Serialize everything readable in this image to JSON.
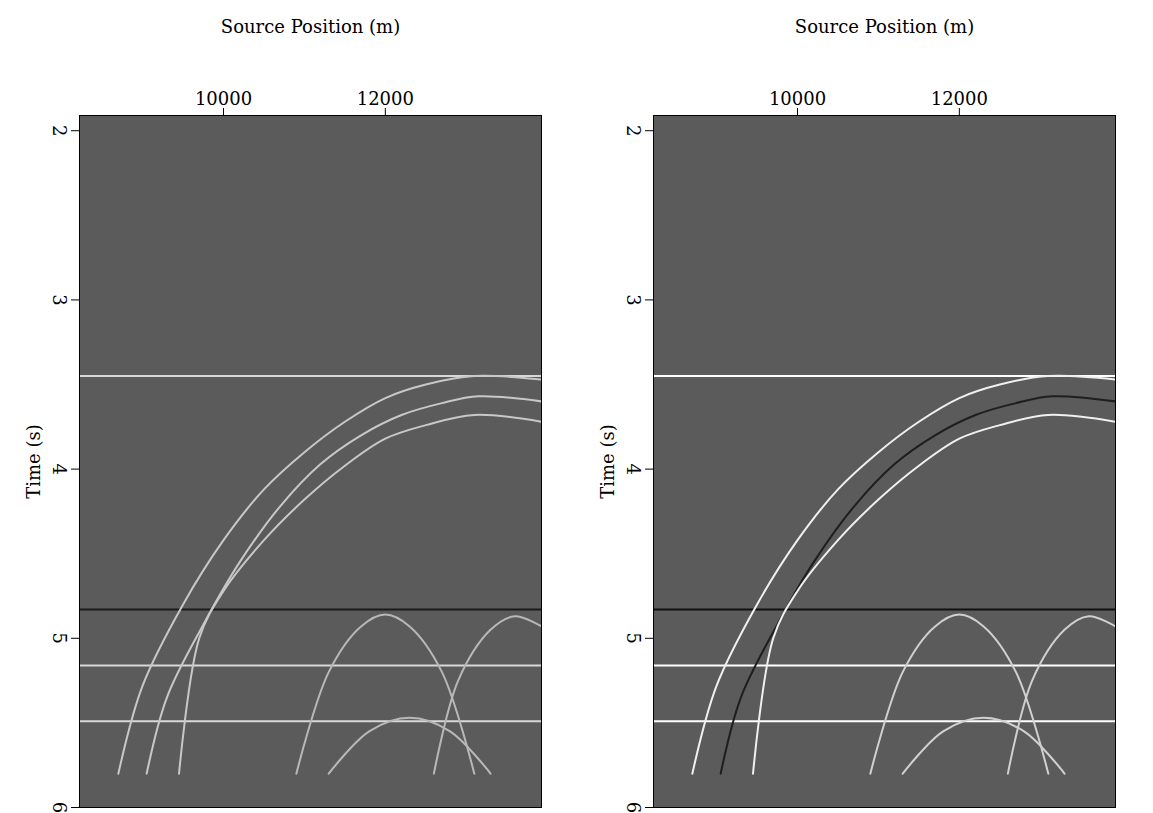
{
  "chart_data": [
    {
      "type": "line",
      "x_label": "Source Position (m)",
      "y_label": "Time (s)",
      "xlim": [
        8220,
        13930
      ],
      "xticks": [
        10000,
        12000
      ],
      "ylim": [
        1.91,
        6
      ],
      "yticks": [
        2,
        3,
        4,
        5,
        6
      ],
      "grid": false,
      "series": [
        {
          "color": "#d8d8d8",
          "x": [
            8220,
            13930
          ],
          "values": [
            3.45,
            3.45
          ]
        },
        {
          "color": "#1a1a1a",
          "x": [
            8220,
            13930
          ],
          "values": [
            4.83,
            4.83
          ]
        },
        {
          "color": "#d8d8d8",
          "x": [
            8220,
            13930
          ],
          "values": [
            5.16,
            5.16
          ]
        },
        {
          "color": "#d8d8d8",
          "x": [
            8220,
            13930
          ],
          "values": [
            5.49,
            5.49
          ]
        },
        {
          "color": "#c8c8c8",
          "x": [
            8700,
            9000,
            9500,
            10000,
            10500,
            11000,
            11500,
            12000,
            12500,
            13100,
            13930
          ],
          "values": [
            5.8,
            5.28,
            4.8,
            4.42,
            4.12,
            3.9,
            3.72,
            3.58,
            3.5,
            3.45,
            3.47
          ]
        },
        {
          "color": "#c8c8c8",
          "x": [
            9050,
            9300,
            9750,
            10200,
            10700,
            11200,
            11700,
            12200,
            12700,
            13150,
            13930
          ],
          "values": [
            5.8,
            5.35,
            4.92,
            4.55,
            4.22,
            3.97,
            3.8,
            3.68,
            3.61,
            3.57,
            3.6
          ]
        },
        {
          "color": "#c8c8c8",
          "x": [
            9450,
            9700,
            10000,
            10500,
            11000,
            11500,
            12000,
            12500,
            13100,
            13930
          ],
          "values": [
            5.8,
            5.0,
            4.72,
            4.42,
            4.18,
            3.98,
            3.82,
            3.74,
            3.68,
            3.72
          ]
        },
        {
          "color": "#b8b8b8",
          "x": [
            10900,
            11300,
            11700,
            12000,
            12300,
            12700,
            13100
          ],
          "values": [
            5.8,
            5.2,
            4.93,
            4.86,
            4.93,
            5.2,
            5.8
          ]
        },
        {
          "color": "#b8b8b8",
          "x": [
            12600,
            12900,
            13300,
            13600,
            13930
          ],
          "values": [
            5.8,
            5.25,
            4.95,
            4.87,
            4.93
          ]
        },
        {
          "color": "#b8b8b8",
          "x": [
            11300,
            11800,
            12300,
            12800,
            13300
          ],
          "values": [
            5.8,
            5.55,
            5.47,
            5.55,
            5.8
          ]
        }
      ]
    },
    {
      "type": "line",
      "x_label": "Source Position (m)",
      "y_label": "Time (s)",
      "xlim": [
        8220,
        13930
      ],
      "xticks": [
        10000,
        12000
      ],
      "ylim": [
        1.91,
        6
      ],
      "yticks": [
        2,
        3,
        4,
        5,
        6
      ],
      "grid": false,
      "series": [
        {
          "color": "#ffffff",
          "x": [
            8220,
            13930
          ],
          "values": [
            3.45,
            3.45
          ]
        },
        {
          "color": "#111111",
          "x": [
            8220,
            13930
          ],
          "values": [
            4.83,
            4.83
          ]
        },
        {
          "color": "#ffffff",
          "x": [
            8220,
            13930
          ],
          "values": [
            5.16,
            5.16
          ]
        },
        {
          "color": "#ffffff",
          "x": [
            8220,
            13930
          ],
          "values": [
            5.49,
            5.49
          ]
        },
        {
          "color": "#f0f0f0",
          "x": [
            8700,
            9000,
            9500,
            10000,
            10500,
            11000,
            11500,
            12000,
            12500,
            13100,
            13930
          ],
          "values": [
            5.8,
            5.28,
            4.8,
            4.42,
            4.12,
            3.9,
            3.72,
            3.58,
            3.5,
            3.45,
            3.47
          ]
        },
        {
          "color": "#1e1e1e",
          "x": [
            9050,
            9300,
            9750,
            10200,
            10700,
            11200,
            11700,
            12200,
            12700,
            13150,
            13930
          ],
          "values": [
            5.8,
            5.35,
            4.92,
            4.55,
            4.22,
            3.97,
            3.8,
            3.68,
            3.61,
            3.57,
            3.6
          ]
        },
        {
          "color": "#f0f0f0",
          "x": [
            9450,
            9700,
            10000,
            10500,
            11000,
            11500,
            12000,
            12500,
            13100,
            13930
          ],
          "values": [
            5.8,
            5.0,
            4.72,
            4.42,
            4.18,
            3.98,
            3.82,
            3.74,
            3.68,
            3.72
          ]
        },
        {
          "color": "#d0d0d0",
          "x": [
            10900,
            11300,
            11700,
            12000,
            12300,
            12700,
            13100
          ],
          "values": [
            5.8,
            5.2,
            4.93,
            4.86,
            4.93,
            5.2,
            5.8
          ]
        },
        {
          "color": "#d0d0d0",
          "x": [
            12600,
            12900,
            13300,
            13600,
            13930
          ],
          "values": [
            5.8,
            5.25,
            4.95,
            4.87,
            4.93
          ]
        },
        {
          "color": "#d0d0d0",
          "x": [
            11300,
            11800,
            12300,
            12800,
            13300
          ],
          "values": [
            5.8,
            5.55,
            5.47,
            5.55,
            5.8
          ]
        }
      ]
    }
  ]
}
